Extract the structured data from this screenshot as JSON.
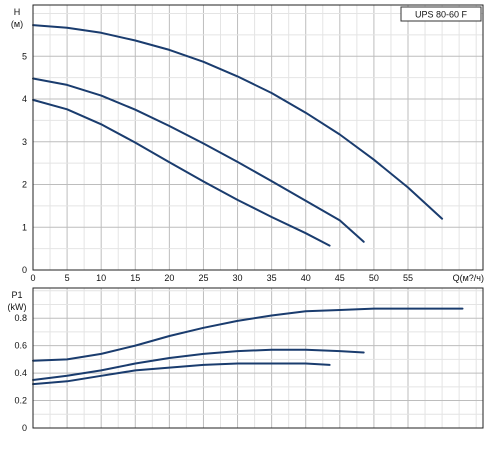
{
  "model_label": "UPS 80-60  F",
  "chart_data": [
    {
      "type": "line",
      "ylabel_line1": "H",
      "ylabel_line2": "(м)",
      "xlabel": "Q(м?/ч)",
      "xlim": [
        0,
        66
      ],
      "ylim": [
        0,
        6.2
      ],
      "grid": true,
      "x_ticks": [
        "0",
        "5",
        "10",
        "15",
        "20",
        "25",
        "30",
        "35",
        "40",
        "45",
        "50",
        "55"
      ],
      "x_tick_values": [
        0,
        5,
        10,
        15,
        20,
        25,
        30,
        35,
        40,
        45,
        50,
        55
      ],
      "y_ticks": [
        "0",
        "1",
        "2",
        "3",
        "4",
        "5"
      ],
      "y_tick_values": [
        0,
        1,
        2,
        3,
        4,
        5
      ],
      "series": [
        {
          "color": "#1a3c6e",
          "points": [
            [
              0,
              5.73
            ],
            [
              5,
              5.67
            ],
            [
              10,
              5.55
            ],
            [
              15,
              5.37
            ],
            [
              20,
              5.15
            ],
            [
              25,
              4.87
            ],
            [
              30,
              4.53
            ],
            [
              35,
              4.14
            ],
            [
              40,
              3.68
            ],
            [
              45,
              3.17
            ],
            [
              50,
              2.58
            ],
            [
              55,
              1.93
            ],
            [
              60,
              1.2
            ]
          ]
        },
        {
          "color": "#1a3c6e",
          "points": [
            [
              0,
              4.48
            ],
            [
              5,
              4.33
            ],
            [
              10,
              4.08
            ],
            [
              15,
              3.75
            ],
            [
              20,
              3.37
            ],
            [
              25,
              2.96
            ],
            [
              30,
              2.53
            ],
            [
              35,
              2.08
            ],
            [
              40,
              1.62
            ],
            [
              45,
              1.16
            ],
            [
              48.5,
              0.66
            ]
          ]
        },
        {
          "color": "#1a3c6e",
          "points": [
            [
              0,
              3.98
            ],
            [
              5,
              3.76
            ],
            [
              10,
              3.41
            ],
            [
              15,
              2.98
            ],
            [
              20,
              2.52
            ],
            [
              25,
              2.07
            ],
            [
              30,
              1.64
            ],
            [
              35,
              1.24
            ],
            [
              40,
              0.86
            ],
            [
              43.5,
              0.57
            ]
          ]
        }
      ]
    },
    {
      "type": "line",
      "ylabel_line1": "P1",
      "ylabel_line2": "(kW)",
      "xlim": [
        0,
        66
      ],
      "ylim": [
        0,
        1.02
      ],
      "grid": true,
      "x_tick_values": [
        0,
        5,
        10,
        15,
        20,
        25,
        30,
        35,
        40,
        45,
        50,
        55
      ],
      "y_ticks": [
        "0",
        "0.2",
        "0.4",
        "0.6",
        "0.8"
      ],
      "y_tick_values": [
        0,
        0.2,
        0.4,
        0.6,
        0.8
      ],
      "series": [
        {
          "color": "#1a3c6e",
          "points": [
            [
              0,
              0.49
            ],
            [
              5,
              0.5
            ],
            [
              10,
              0.54
            ],
            [
              15,
              0.6
            ],
            [
              20,
              0.67
            ],
            [
              25,
              0.73
            ],
            [
              30,
              0.78
            ],
            [
              35,
              0.82
            ],
            [
              40,
              0.85
            ],
            [
              45,
              0.86
            ],
            [
              50,
              0.87
            ],
            [
              55,
              0.87
            ],
            [
              63,
              0.87
            ]
          ]
        },
        {
          "color": "#1a3c6e",
          "points": [
            [
              0,
              0.35
            ],
            [
              5,
              0.38
            ],
            [
              10,
              0.42
            ],
            [
              15,
              0.47
            ],
            [
              20,
              0.51
            ],
            [
              25,
              0.54
            ],
            [
              30,
              0.56
            ],
            [
              35,
              0.57
            ],
            [
              40,
              0.57
            ],
            [
              45,
              0.56
            ],
            [
              48.5,
              0.55
            ]
          ]
        },
        {
          "color": "#1a3c6e",
          "points": [
            [
              0,
              0.32
            ],
            [
              5,
              0.34
            ],
            [
              10,
              0.38
            ],
            [
              15,
              0.42
            ],
            [
              20,
              0.44
            ],
            [
              25,
              0.46
            ],
            [
              30,
              0.47
            ],
            [
              35,
              0.47
            ],
            [
              40,
              0.47
            ],
            [
              43.5,
              0.46
            ]
          ]
        }
      ]
    }
  ]
}
